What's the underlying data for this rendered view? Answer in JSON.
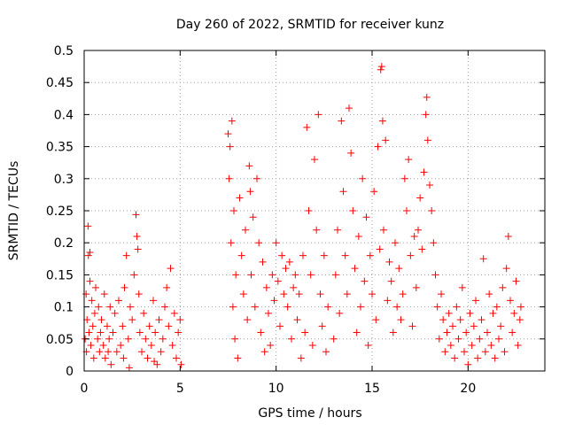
{
  "chart_data": {
    "type": "scatter",
    "title": "Day 260 of 2022, SRMTID for receiver kunz",
    "xlabel": "GPS time / hours",
    "ylabel": "SRMTID / TECUs",
    "xlim": [
      0,
      24
    ],
    "ylim": [
      0,
      0.5
    ],
    "x_ticks": [
      0,
      5,
      10,
      15,
      20
    ],
    "x_tick_labels": [
      "0",
      "5",
      "10",
      "15",
      "20"
    ],
    "y_ticks": [
      0,
      0.05,
      0.1,
      0.15,
      0.2,
      0.25,
      0.3,
      0.35,
      0.4,
      0.45,
      0.5
    ],
    "y_tick_labels": [
      "0",
      "0.05",
      "0.1",
      "0.15",
      "0.2",
      "0.25",
      "0.3",
      "0.35",
      "0.4",
      "0.45",
      "0.5"
    ],
    "grid": true,
    "marker": "+",
    "series": [
      {
        "name": "SRMTID",
        "color": "#ff0000",
        "points": [
          [
            0.05,
            0.05
          ],
          [
            0.1,
            0.12
          ],
          [
            0.12,
            0.03
          ],
          [
            0.15,
            0.08
          ],
          [
            0.2,
            0.226
          ],
          [
            0.22,
            0.18
          ],
          [
            0.25,
            0.06
          ],
          [
            0.3,
            0.14
          ],
          [
            0.35,
            0.04
          ],
          [
            0.4,
            0.11
          ],
          [
            0.45,
            0.07
          ],
          [
            0.5,
            0.02
          ],
          [
            0.55,
            0.09
          ],
          [
            0.6,
            0.13
          ],
          [
            0.7,
            0.05
          ],
          [
            0.75,
            0.1
          ],
          [
            0.8,
            0.03
          ],
          [
            0.85,
            0.06
          ],
          [
            0.9,
            0.08
          ],
          [
            1.0,
            0.04
          ],
          [
            1.05,
            0.12
          ],
          [
            1.1,
            0.02
          ],
          [
            1.2,
            0.07
          ],
          [
            1.3,
            0.05
          ],
          [
            1.35,
            0.1
          ],
          [
            1.4,
            0.01
          ],
          [
            1.5,
            0.06
          ],
          [
            1.6,
            0.09
          ],
          [
            1.7,
            0.03
          ],
          [
            1.8,
            0.11
          ],
          [
            1.9,
            0.04
          ],
          [
            2.0,
            0.07
          ],
          [
            2.05,
            0.02
          ],
          [
            2.1,
            0.13
          ],
          [
            2.2,
            0.18
          ],
          [
            2.3,
            0.05
          ],
          [
            2.4,
            0.1
          ],
          [
            2.5,
            0.08
          ],
          [
            2.6,
            0.15
          ],
          [
            2.7,
            0.244
          ],
          [
            2.75,
            0.21
          ],
          [
            2.8,
            0.19
          ],
          [
            2.85,
            0.12
          ],
          [
            2.9,
            0.06
          ],
          [
            3.0,
            0.03
          ],
          [
            3.1,
            0.09
          ],
          [
            3.2,
            0.05
          ],
          [
            3.3,
            0.02
          ],
          [
            3.4,
            0.07
          ],
          [
            3.5,
            0.04
          ],
          [
            3.6,
            0.11
          ],
          [
            3.7,
            0.06
          ],
          [
            3.8,
            0.01
          ],
          [
            3.9,
            0.08
          ],
          [
            4.0,
            0.03
          ],
          [
            4.1,
            0.05
          ],
          [
            4.2,
            0.1
          ],
          [
            4.3,
            0.13
          ],
          [
            4.4,
            0.07
          ],
          [
            4.5,
            0.16
          ],
          [
            4.6,
            0.04
          ],
          [
            4.7,
            0.09
          ],
          [
            4.8,
            0.02
          ],
          [
            4.9,
            0.06
          ],
          [
            5.0,
            0.08
          ],
          [
            5.05,
            0.01
          ],
          [
            0.3,
            0.185
          ],
          [
            1.25,
            0.03
          ],
          [
            2.35,
            0.005
          ],
          [
            3.65,
            0.015
          ],
          [
            7.5,
            0.37
          ],
          [
            7.55,
            0.3
          ],
          [
            7.6,
            0.35
          ],
          [
            7.65,
            0.2
          ],
          [
            7.7,
            0.39
          ],
          [
            7.75,
            0.1
          ],
          [
            7.8,
            0.25
          ],
          [
            7.85,
            0.05
          ],
          [
            7.9,
            0.15
          ],
          [
            8.0,
            0.02
          ],
          [
            8.1,
            0.27
          ],
          [
            8.2,
            0.18
          ],
          [
            8.3,
            0.12
          ],
          [
            8.4,
            0.22
          ],
          [
            8.5,
            0.08
          ],
          [
            8.6,
            0.32
          ],
          [
            8.65,
            0.28
          ],
          [
            8.7,
            0.15
          ],
          [
            8.8,
            0.24
          ],
          [
            8.9,
            0.1
          ],
          [
            9.0,
            0.3
          ],
          [
            9.1,
            0.2
          ],
          [
            9.2,
            0.06
          ],
          [
            9.3,
            0.17
          ],
          [
            9.4,
            0.03
          ],
          [
            9.5,
            0.13
          ],
          [
            9.6,
            0.09
          ],
          [
            9.7,
            0.04
          ],
          [
            9.8,
            0.15
          ],
          [
            9.9,
            0.11
          ],
          [
            10.0,
            0.2
          ],
          [
            10.1,
            0.14
          ],
          [
            10.2,
            0.07
          ],
          [
            10.3,
            0.18
          ],
          [
            10.4,
            0.12
          ],
          [
            10.5,
            0.16
          ],
          [
            10.6,
            0.1
          ],
          [
            10.7,
            0.17
          ],
          [
            10.8,
            0.05
          ],
          [
            10.9,
            0.13
          ],
          [
            11.0,
            0.15
          ],
          [
            11.1,
            0.08
          ],
          [
            11.2,
            0.12
          ],
          [
            11.3,
            0.02
          ],
          [
            11.4,
            0.18
          ],
          [
            11.5,
            0.06
          ],
          [
            11.6,
            0.38
          ],
          [
            11.7,
            0.25
          ],
          [
            11.8,
            0.15
          ],
          [
            11.9,
            0.04
          ],
          [
            12.0,
            0.33
          ],
          [
            12.1,
            0.22
          ],
          [
            12.2,
            0.4
          ],
          [
            12.3,
            0.12
          ],
          [
            12.4,
            0.07
          ],
          [
            12.5,
            0.18
          ],
          [
            12.6,
            0.03
          ],
          [
            12.7,
            0.1
          ],
          [
            13.0,
            0.05
          ],
          [
            13.1,
            0.15
          ],
          [
            13.2,
            0.22
          ],
          [
            13.3,
            0.09
          ],
          [
            13.4,
            0.39
          ],
          [
            13.5,
            0.28
          ],
          [
            13.6,
            0.18
          ],
          [
            13.7,
            0.12
          ],
          [
            13.8,
            0.41
          ],
          [
            13.9,
            0.34
          ],
          [
            14.0,
            0.25
          ],
          [
            14.1,
            0.16
          ],
          [
            14.2,
            0.06
          ],
          [
            14.3,
            0.21
          ],
          [
            14.4,
            0.1
          ],
          [
            14.5,
            0.3
          ],
          [
            14.6,
            0.14
          ],
          [
            14.7,
            0.24
          ],
          [
            14.8,
            0.04
          ],
          [
            14.9,
            0.18
          ],
          [
            15.0,
            0.12
          ],
          [
            15.1,
            0.28
          ],
          [
            15.2,
            0.08
          ],
          [
            15.3,
            0.35
          ],
          [
            15.4,
            0.19
          ],
          [
            15.45,
            0.47
          ],
          [
            15.5,
            0.475
          ],
          [
            15.55,
            0.39
          ],
          [
            15.6,
            0.22
          ],
          [
            15.7,
            0.36
          ],
          [
            15.8,
            0.11
          ],
          [
            15.9,
            0.17
          ],
          [
            16.0,
            0.14
          ],
          [
            16.1,
            0.06
          ],
          [
            16.2,
            0.2
          ],
          [
            16.3,
            0.1
          ],
          [
            16.4,
            0.16
          ],
          [
            16.5,
            0.08
          ],
          [
            16.6,
            0.12
          ],
          [
            16.7,
            0.3
          ],
          [
            16.8,
            0.25
          ],
          [
            16.9,
            0.33
          ],
          [
            17.0,
            0.18
          ],
          [
            17.1,
            0.07
          ],
          [
            17.2,
            0.21
          ],
          [
            17.3,
            0.13
          ],
          [
            17.4,
            0.22
          ],
          [
            17.5,
            0.27
          ],
          [
            17.6,
            0.19
          ],
          [
            17.7,
            0.31
          ],
          [
            17.8,
            0.4
          ],
          [
            17.85,
            0.427
          ],
          [
            17.9,
            0.36
          ],
          [
            18.0,
            0.29
          ],
          [
            18.1,
            0.25
          ],
          [
            18.2,
            0.2
          ],
          [
            18.3,
            0.15
          ],
          [
            18.4,
            0.1
          ],
          [
            18.5,
            0.05
          ],
          [
            18.6,
            0.12
          ],
          [
            18.7,
            0.08
          ],
          [
            18.8,
            0.03
          ],
          [
            18.9,
            0.06
          ],
          [
            19.0,
            0.09
          ],
          [
            19.1,
            0.04
          ],
          [
            19.2,
            0.07
          ],
          [
            19.3,
            0.02
          ],
          [
            19.4,
            0.1
          ],
          [
            19.5,
            0.05
          ],
          [
            19.6,
            0.08
          ],
          [
            19.7,
            0.13
          ],
          [
            19.8,
            0.03
          ],
          [
            19.9,
            0.06
          ],
          [
            20.0,
            0.01
          ],
          [
            20.1,
            0.09
          ],
          [
            20.2,
            0.04
          ],
          [
            20.3,
            0.07
          ],
          [
            20.4,
            0.11
          ],
          [
            20.5,
            0.02
          ],
          [
            20.6,
            0.05
          ],
          [
            20.7,
            0.08
          ],
          [
            20.8,
            0.175
          ],
          [
            20.9,
            0.03
          ],
          [
            21.0,
            0.06
          ],
          [
            21.1,
            0.12
          ],
          [
            21.2,
            0.04
          ],
          [
            21.3,
            0.09
          ],
          [
            21.4,
            0.02
          ],
          [
            21.5,
            0.1
          ],
          [
            21.6,
            0.05
          ],
          [
            21.7,
            0.07
          ],
          [
            21.8,
            0.13
          ],
          [
            21.9,
            0.03
          ],
          [
            22.0,
            0.16
          ],
          [
            22.1,
            0.21
          ],
          [
            22.2,
            0.11
          ],
          [
            22.3,
            0.06
          ],
          [
            22.4,
            0.09
          ],
          [
            22.5,
            0.14
          ],
          [
            22.6,
            0.04
          ],
          [
            22.7,
            0.08
          ],
          [
            22.75,
            0.1
          ]
        ]
      }
    ]
  }
}
